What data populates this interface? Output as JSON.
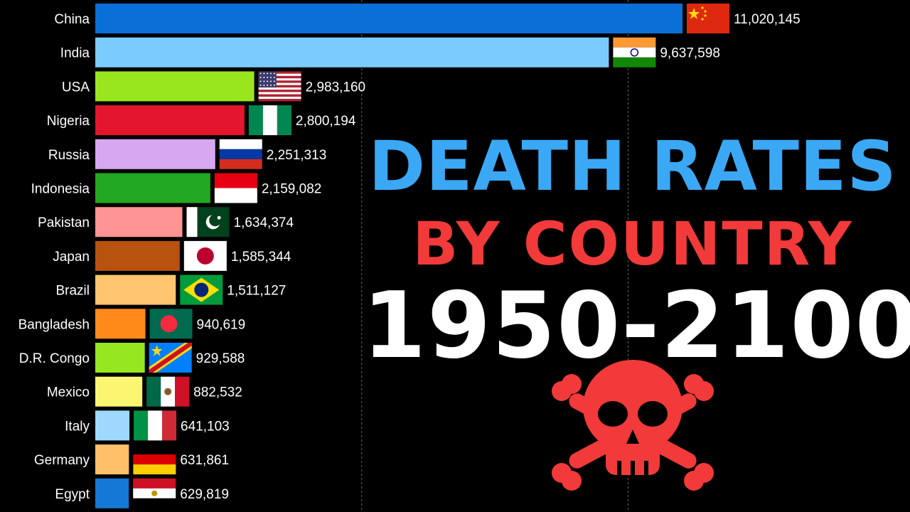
{
  "title": {
    "line1": "DEATH RATES",
    "line2": "BY COUNTRY",
    "line3": "1950-2100",
    "colors": {
      "line1": "#3ba8f5",
      "line2": "#f23a3a",
      "line3": "#ffffff"
    }
  },
  "decoration": {
    "icon": "skull-crossbones-icon",
    "color": "#f23a3a"
  },
  "chart_data": {
    "type": "bar",
    "orientation": "horizontal",
    "title": "",
    "xlabel": "",
    "ylabel": "",
    "xlim": [
      0,
      14000000
    ],
    "grid": {
      "vertical_lines": [
        5000000,
        10000000
      ]
    },
    "categories": [
      "China",
      "India",
      "USA",
      "Nigeria",
      "Russia",
      "Indonesia",
      "Pakistan",
      "Japan",
      "Brazil",
      "Bangladesh",
      "D.R. Congo",
      "Mexico",
      "Italy",
      "Germany",
      "Egypt"
    ],
    "values": [
      11020145,
      9637598,
      2983160,
      2800194,
      2251313,
      2159082,
      1634374,
      1585344,
      1511127,
      940619,
      929588,
      882532,
      641103,
      631861,
      629819
    ],
    "value_labels": [
      "11,020,145",
      "9,637,598",
      "2,983,160",
      "2,800,194",
      "2,251,313",
      "2,159,082",
      "1,634,374",
      "1,585,344",
      "1,511,127",
      "940,619",
      "929,588",
      "882,532",
      "641,103",
      "631,861",
      "629,819"
    ],
    "colors": [
      "#0a6fd6",
      "#7ccbff",
      "#9ae61e",
      "#e3162d",
      "#d8a7f2",
      "#22a822",
      "#ff9494",
      "#b8520f",
      "#ffc46e",
      "#ff8a1a",
      "#96e620",
      "#fbf672",
      "#9fd8ff",
      "#ffc069",
      "#1478d6"
    ],
    "flags": [
      "china-flag",
      "india-flag",
      "usa-flag",
      "nigeria-flag",
      "russia-flag",
      "indonesia-flag",
      "pakistan-flag",
      "japan-flag",
      "brazil-flag",
      "bangladesh-flag",
      "dr-congo-flag",
      "mexico-flag",
      "italy-flag",
      "germany-flag",
      "egypt-flag"
    ]
  }
}
